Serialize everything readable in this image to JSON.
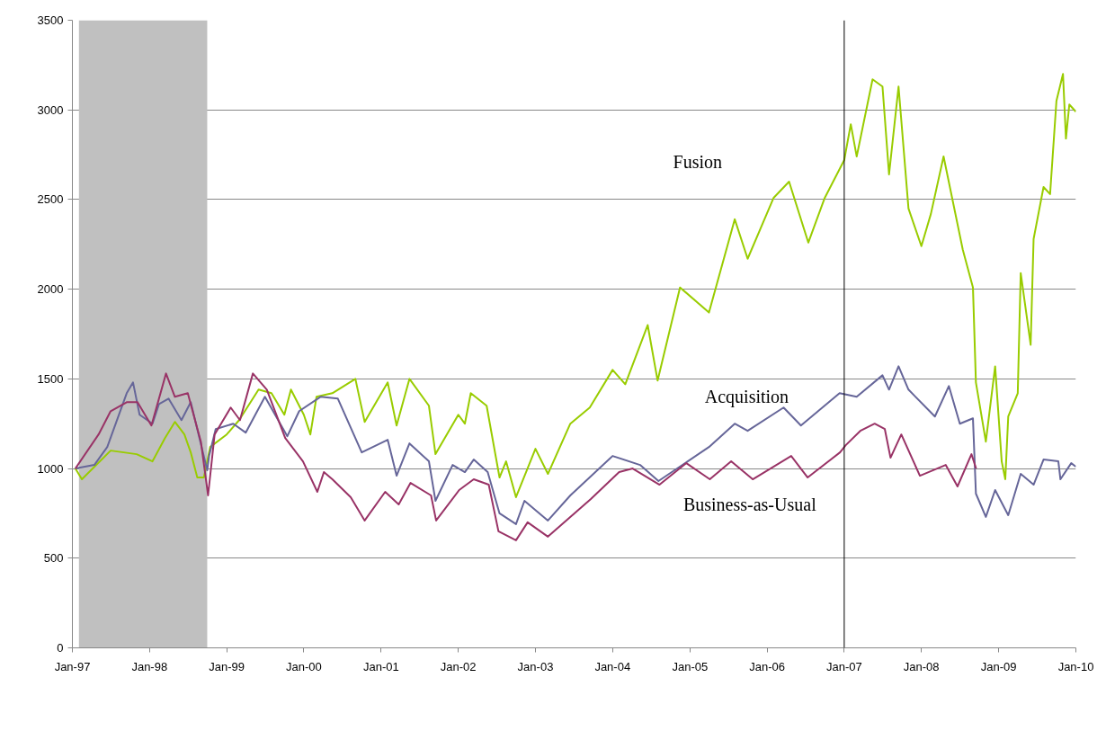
{
  "chart_data": {
    "type": "line",
    "grid": "y",
    "xlim": [
      "1997-01-01",
      "2010-01-01"
    ],
    "xticks": [
      {
        "value": "1997-01-01",
        "label": "Jan-97"
      },
      {
        "value": "1998-01-01",
        "label": "Jan-98"
      },
      {
        "value": "1999-01-01",
        "label": "Jan-99"
      },
      {
        "value": "2000-01-01",
        "label": "Jan-00"
      },
      {
        "value": "2001-01-01",
        "label": "Jan-01"
      },
      {
        "value": "2002-01-01",
        "label": "Jan-02"
      },
      {
        "value": "2003-01-01",
        "label": "Jan-03"
      },
      {
        "value": "2004-01-01",
        "label": "Jan-04"
      },
      {
        "value": "2005-01-01",
        "label": "Jan-05"
      },
      {
        "value": "2006-01-01",
        "label": "Jan-06"
      },
      {
        "value": "2007-01-01",
        "label": "Jan-07"
      },
      {
        "value": "2008-01-01",
        "label": "Jan-08"
      },
      {
        "value": "2009-01-01",
        "label": "Jan-09"
      },
      {
        "value": "2010-01-01",
        "label": "Jan-10"
      }
    ],
    "ylim": [
      0,
      3500
    ],
    "yticks": [
      0,
      500,
      1000,
      1500,
      2000,
      2500,
      3000,
      3500
    ],
    "series": [
      {
        "color": "#99cc00",
        "x": [
          "1997-01-15",
          "1997-02-15",
          "1997-07-01",
          "1997-09-01",
          "1997-11-01",
          "1998-01-15",
          "1998-03-15",
          "1998-05-01",
          "1998-06-15",
          "1998-07-15",
          "1998-08-15",
          "1998-09-15",
          "1998-10-15",
          "1999-01-01",
          "1999-03-01",
          "1999-06-01",
          "1999-08-01",
          "1999-10-01",
          "1999-11-01",
          "2000-01-01",
          "2000-02-01",
          "2000-03-01",
          "2000-05-15",
          "2000-09-01",
          "2000-10-15",
          "2001-02-01",
          "2001-03-15",
          "2001-05-15",
          "2001-08-15",
          "2001-09-15",
          "2002-01-01",
          "2002-02-01",
          "2002-03-01",
          "2002-05-15",
          "2002-07-15",
          "2002-08-15",
          "2002-10-01",
          "2003-01-01",
          "2003-03-01",
          "2003-06-15",
          "2003-09-15",
          "2004-01-01",
          "2004-03-01",
          "2004-06-15",
          "2004-08-01",
          "2004-11-15",
          "2005-04-01",
          "2005-08-01",
          "2005-10-01",
          "2006-02-01",
          "2006-04-15",
          "2006-07-15",
          "2006-10-01",
          "2007-01-01",
          "2007-02-01",
          "2007-03-01",
          "2007-05-15",
          "2007-07-01",
          "2007-08-01",
          "2007-09-15",
          "2007-11-01",
          "2008-01-01",
          "2008-02-15",
          "2008-04-15",
          "2008-07-15",
          "2008-09-01",
          "2008-09-15",
          "2008-11-01",
          "2008-12-15",
          "2009-01-15",
          "2009-02-01",
          "2009-02-15",
          "2009-04-01",
          "2009-04-15",
          "2009-06-01",
          "2009-06-15",
          "2009-08-01",
          "2009-09-01",
          "2009-10-01",
          "2009-11-01",
          "2009-11-15",
          "2009-12-01",
          "2010-01-01"
        ],
        "values": [
          1000,
          940,
          1100,
          1090,
          1080,
          1040,
          1170,
          1260,
          1190,
          1090,
          950,
          950,
          1120,
          1190,
          1270,
          1440,
          1420,
          1300,
          1440,
          1300,
          1190,
          1400,
          1420,
          1500,
          1260,
          1480,
          1240,
          1500,
          1350,
          1080,
          1300,
          1250,
          1420,
          1350,
          950,
          1040,
          840,
          1110,
          970,
          1250,
          1340,
          1550,
          1470,
          1800,
          1490,
          2010,
          1870,
          2390,
          2170,
          2510,
          2600,
          2260,
          2510,
          2720,
          2920,
          2740,
          3170,
          3130,
          2640,
          3130,
          2450,
          2240,
          2420,
          2740,
          2220,
          2010,
          1480,
          1150,
          1570,
          1040,
          940,
          1290,
          1420,
          2090,
          1690,
          2280,
          2570,
          2530,
          3050,
          3200,
          2840,
          3030,
          2990
        ]
      },
      {
        "color": "#666699",
        "x": [
          "1997-01-15",
          "1997-04-15",
          "1997-06-15",
          "1997-09-15",
          "1997-10-15",
          "1997-11-15",
          "1998-01-15",
          "1998-02-15",
          "1998-04-01",
          "1998-06-01",
          "1998-07-15",
          "1998-10-01",
          "1998-10-10",
          "1998-11-10",
          "1999-02-01",
          "1999-04-01",
          "1999-07-01",
          "1999-10-15",
          "1999-12-10",
          "2000-03-20",
          "2000-06-10",
          "2000-10-01",
          "2001-02-01",
          "2001-03-15",
          "2001-05-15",
          "2001-08-15",
          "2001-09-15",
          "2001-12-05",
          "2002-02-01",
          "2002-03-15",
          "2002-05-20",
          "2002-07-15",
          "2002-10-01",
          "2002-11-10",
          "2003-03-01",
          "2003-06-15",
          "2004-01-01",
          "2004-05-10",
          "2004-08-05",
          "2005-04-01",
          "2005-08-01",
          "2005-10-01",
          "2006-03-20",
          "2006-06-10",
          "2006-12-10",
          "2007-03-01",
          "2007-07-01",
          "2007-08-01",
          "2007-09-15",
          "2007-11-01",
          "2008-03-05",
          "2008-05-10",
          "2008-07-01",
          "2008-09-01",
          "2008-09-15",
          "2008-11-01",
          "2008-12-15",
          "2009-02-15",
          "2009-04-15",
          "2009-06-15",
          "2009-08-01",
          "2009-10-10",
          "2009-10-20",
          "2009-12-10",
          "2010-01-01"
        ],
        "values": [
          1000,
          1020,
          1120,
          1420,
          1480,
          1300,
          1250,
          1360,
          1390,
          1270,
          1370,
          990,
          1070,
          1220,
          1250,
          1200,
          1400,
          1180,
          1320,
          1400,
          1390,
          1090,
          1160,
          960,
          1140,
          1040,
          820,
          1020,
          980,
          1050,
          980,
          750,
          690,
          820,
          710,
          850,
          1070,
          1020,
          930,
          1120,
          1250,
          1210,
          1340,
          1240,
          1420,
          1400,
          1520,
          1440,
          1570,
          1440,
          1290,
          1460,
          1250,
          1280,
          860,
          730,
          880,
          740,
          970,
          910,
          1050,
          1040,
          940,
          1030,
          1010
        ]
      },
      {
        "color": "#993366",
        "x": [
          "1997-01-15",
          "1997-05-05",
          "1997-07-01",
          "1997-09-15",
          "1997-11-05",
          "1998-01-10",
          "1998-03-20",
          "1998-05-01",
          "1998-07-01",
          "1998-09-01",
          "1998-10-05",
          "1998-11-05",
          "1999-01-20",
          "1999-03-05",
          "1999-05-05",
          "1999-07-10",
          "1999-10-05",
          "1999-12-28",
          "2000-03-05",
          "2000-04-05",
          "2000-05-15",
          "2000-08-10",
          "2000-10-15",
          "2001-01-20",
          "2001-03-25",
          "2001-05-20",
          "2001-08-25",
          "2001-09-18",
          "2002-01-05",
          "2002-03-15",
          "2002-05-25",
          "2002-07-10",
          "2002-10-01",
          "2002-11-25",
          "2003-03-01",
          "2003-09-20",
          "2004-02-01",
          "2004-04-05",
          "2004-08-10",
          "2004-12-15",
          "2005-04-05",
          "2005-07-15",
          "2005-10-25",
          "2006-04-25",
          "2006-07-12",
          "2006-12-12",
          "2007-01-08",
          "2007-03-18",
          "2007-05-25",
          "2007-07-12",
          "2007-08-08",
          "2007-09-28",
          "2007-12-25",
          "2008-04-25",
          "2008-06-20",
          "2008-08-25",
          "2008-09-16"
        ],
        "values": [
          1000,
          1190,
          1320,
          1370,
          1370,
          1240,
          1530,
          1400,
          1420,
          1150,
          850,
          1190,
          1340,
          1270,
          1530,
          1440,
          1170,
          1040,
          870,
          980,
          940,
          840,
          710,
          870,
          800,
          920,
          850,
          710,
          880,
          940,
          910,
          650,
          600,
          700,
          620,
          830,
          980,
          1000,
          910,
          1030,
          940,
          1040,
          940,
          1070,
          950,
          1090,
          1130,
          1210,
          1250,
          1220,
          1060,
          1190,
          960,
          1020,
          900,
          1080,
          1000
        ]
      }
    ],
    "bands": [
      {
        "axis": "x",
        "from": "1997-02-01",
        "to": "1998-10-01",
        "color": "#c0c0c0"
      }
    ],
    "ref_lines": [
      {
        "axis": "x",
        "value": "2007-01-01",
        "color": "#000000"
      }
    ],
    "annotations": [
      "Fusion",
      "Acquisition",
      "Business-as-Usual"
    ]
  }
}
